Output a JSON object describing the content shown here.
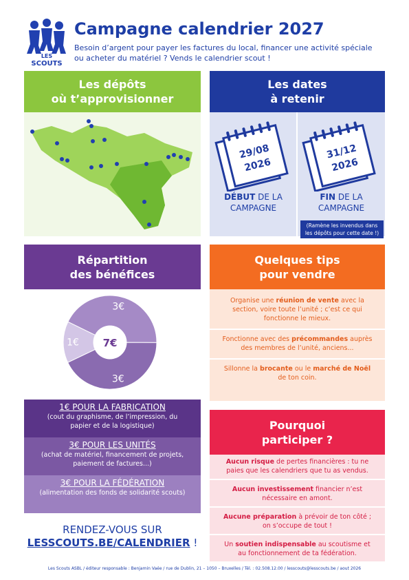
{
  "header": {
    "logo_text": [
      "LES",
      "SCOUTS"
    ],
    "title": "Campagne calendrier 2027",
    "subtitle": "Besoin d’argent pour payer les factures du local, financer une activité spéciale ou acheter du matériel ? Vends le calendrier scout !"
  },
  "depots": {
    "title_lines": [
      "Les dépôts",
      "où t’approvisionner"
    ]
  },
  "dates": {
    "title_lines": [
      "Les dates",
      "à retenir"
    ],
    "start": {
      "date": "29/08",
      "year": "2026",
      "label": [
        {
          "text": "DÉBUT",
          "bold": true
        },
        {
          "text": " DE LA CAMPAGNE"
        }
      ]
    },
    "end": {
      "date": "31/12",
      "year": "2026",
      "label": [
        {
          "text": "FIN",
          "bold": true
        },
        {
          "text": " DE LA CAMPAGNE"
        }
      ]
    },
    "note": "(Ramène les invendus dans les dépôts pour cette date !)"
  },
  "benefits": {
    "title_lines": [
      "Répartition",
      "des bénéfices"
    ],
    "donut": {
      "type": "pie",
      "values": [
        3,
        3,
        1
      ],
      "value_labels": [
        "3€",
        "3€",
        "1€"
      ],
      "colors": [
        "#a58ac6",
        "#8a6bb0",
        "#d3c6e6"
      ],
      "total_label": "7€"
    },
    "items": [
      {
        "title": "1€ POUR LA FABRICATION",
        "text": "(cout du graphisme, de l’impression, du papier et de la logistique)"
      },
      {
        "title": "3€ POUR LES UNITÉS",
        "text": "(achat de matériel, financement de projets, paiement de factures...)"
      },
      {
        "title": "3€ POUR LA FÉDÉRATION",
        "text": "(alimentation des fonds de solidarité scouts)"
      }
    ]
  },
  "cta": {
    "line1": "RENDEZ-VOUS SUR",
    "link": "LESSCOUTS.BE/CALENDRIER",
    "end": " !"
  },
  "tips": {
    "title_lines": [
      "Quelques tips",
      "pour vendre"
    ],
    "items": [
      [
        {
          "text": "Organise une "
        },
        {
          "text": "réunion de vente",
          "bold": true
        },
        {
          "text": " avec la section, voire toute l’unité ; c’est ce qui fonctionne le mieux."
        }
      ],
      [
        {
          "text": "Fonctionne avec des "
        },
        {
          "text": "précommandes",
          "bold": true
        },
        {
          "text": " auprès des membres de l’unité, anciens..."
        }
      ],
      [
        {
          "text": "Sillonne la "
        },
        {
          "text": "brocante",
          "bold": true
        },
        {
          "text": " ou le "
        },
        {
          "text": "marché de Noël",
          "bold": true
        },
        {
          "text": " de ton coin."
        }
      ]
    ]
  },
  "why": {
    "title_lines": [
      "Pourquoi",
      "participer ?"
    ],
    "items": [
      [
        {
          "text": "Aucun risque",
          "bold": true
        },
        {
          "text": " de pertes financières : tu ne paies que les calendriers que tu as vendus."
        }
      ],
      [
        {
          "text": "Aucun investissement",
          "bold": true
        },
        {
          "text": " financier n’est nécessaire en amont."
        }
      ],
      [
        {
          "text": "Aucune préparation",
          "bold": true
        },
        {
          "text": " à prévoir de ton côté ; on s’occupe de tout !"
        }
      ],
      [
        {
          "text": "Un "
        },
        {
          "text": "soutien indispensable",
          "bold": true
        },
        {
          "text": " au scoutisme et au fonctionnement de ta fédération."
        }
      ]
    ]
  },
  "footer": "Les Scouts ASBL / éditeur responsable : Benjamin Vaée / rue de Dublin, 21 – 1050 – Bruxelles / Tél. : 02.508.12.00 / lesscouts@lesscouts.be / aout 2026"
}
